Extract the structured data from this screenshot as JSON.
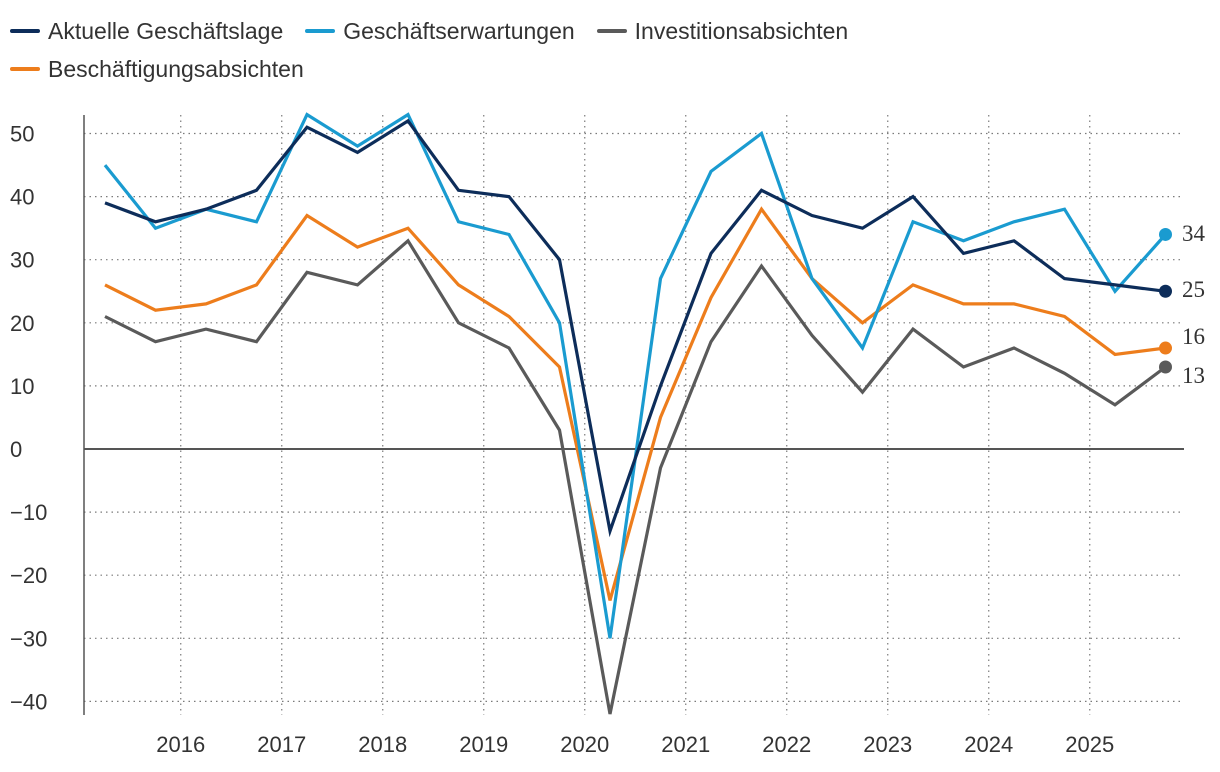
{
  "colors": {
    "Aktuelle Geschäftslage": "#0d2d5a",
    "Geschäftserwartungen": "#1a9bd0",
    "Investitionsabsichten": "#5a5a5a",
    "Beschäftigungsabsichten": "#ed7d1c"
  },
  "chart_data": {
    "type": "line",
    "ylim": [
      -42,
      55
    ],
    "yticks": [
      50,
      40,
      30,
      20,
      10,
      0,
      -10,
      -20,
      -30,
      -40
    ],
    "year_ticks": [
      2016,
      2017,
      2018,
      2019,
      2020,
      2021,
      2022,
      2023,
      2024,
      2025
    ],
    "grid": "dotted",
    "legend_position": "top-left",
    "x": [
      "2015-H1",
      "2015-H2",
      "2016-H1",
      "2016-H2",
      "2017-H1",
      "2017-H2",
      "2018-H1",
      "2018-H2",
      "2019-H1",
      "2019-H2",
      "2020-H1",
      "2020-H2",
      "2021-H1",
      "2021-H2",
      "2022-H1",
      "2022-H2",
      "2023-H1",
      "2023-H2",
      "2024-H1",
      "2024-H2",
      "2025-H1",
      "2025-H2"
    ],
    "series": [
      {
        "name": "Aktuelle Geschäftslage",
        "values": [
          39,
          36,
          38,
          41,
          51,
          47,
          52,
          41,
          40,
          30,
          -13,
          10,
          31,
          41,
          37,
          35,
          40,
          31,
          33,
          27,
          26,
          25
        ],
        "end_label": "25"
      },
      {
        "name": "Geschäftserwartungen",
        "values": [
          45,
          35,
          38,
          36,
          53,
          48,
          53,
          36,
          34,
          20,
          -30,
          27,
          44,
          50,
          27,
          16,
          36,
          33,
          36,
          38,
          25,
          34
        ],
        "end_label": "34"
      },
      {
        "name": "Investitionsabsichten",
        "values": [
          21,
          17,
          19,
          17,
          28,
          26,
          33,
          20,
          16,
          3,
          -42,
          -3,
          17,
          29,
          18,
          9,
          19,
          13,
          16,
          12,
          7,
          13
        ],
        "end_label": "13"
      },
      {
        "name": "Beschäftigungsabsichten",
        "values": [
          26,
          22,
          23,
          26,
          37,
          32,
          35,
          26,
          21,
          13,
          -24,
          5,
          24,
          38,
          27,
          20,
          26,
          23,
          23,
          21,
          15,
          16
        ],
        "end_label": "16"
      }
    ],
    "legend_order": [
      "Aktuelle Geschäftslage",
      "Geschäftserwartungen",
      "Investitionsabsichten",
      "Beschäftigungsabsichten"
    ]
  }
}
